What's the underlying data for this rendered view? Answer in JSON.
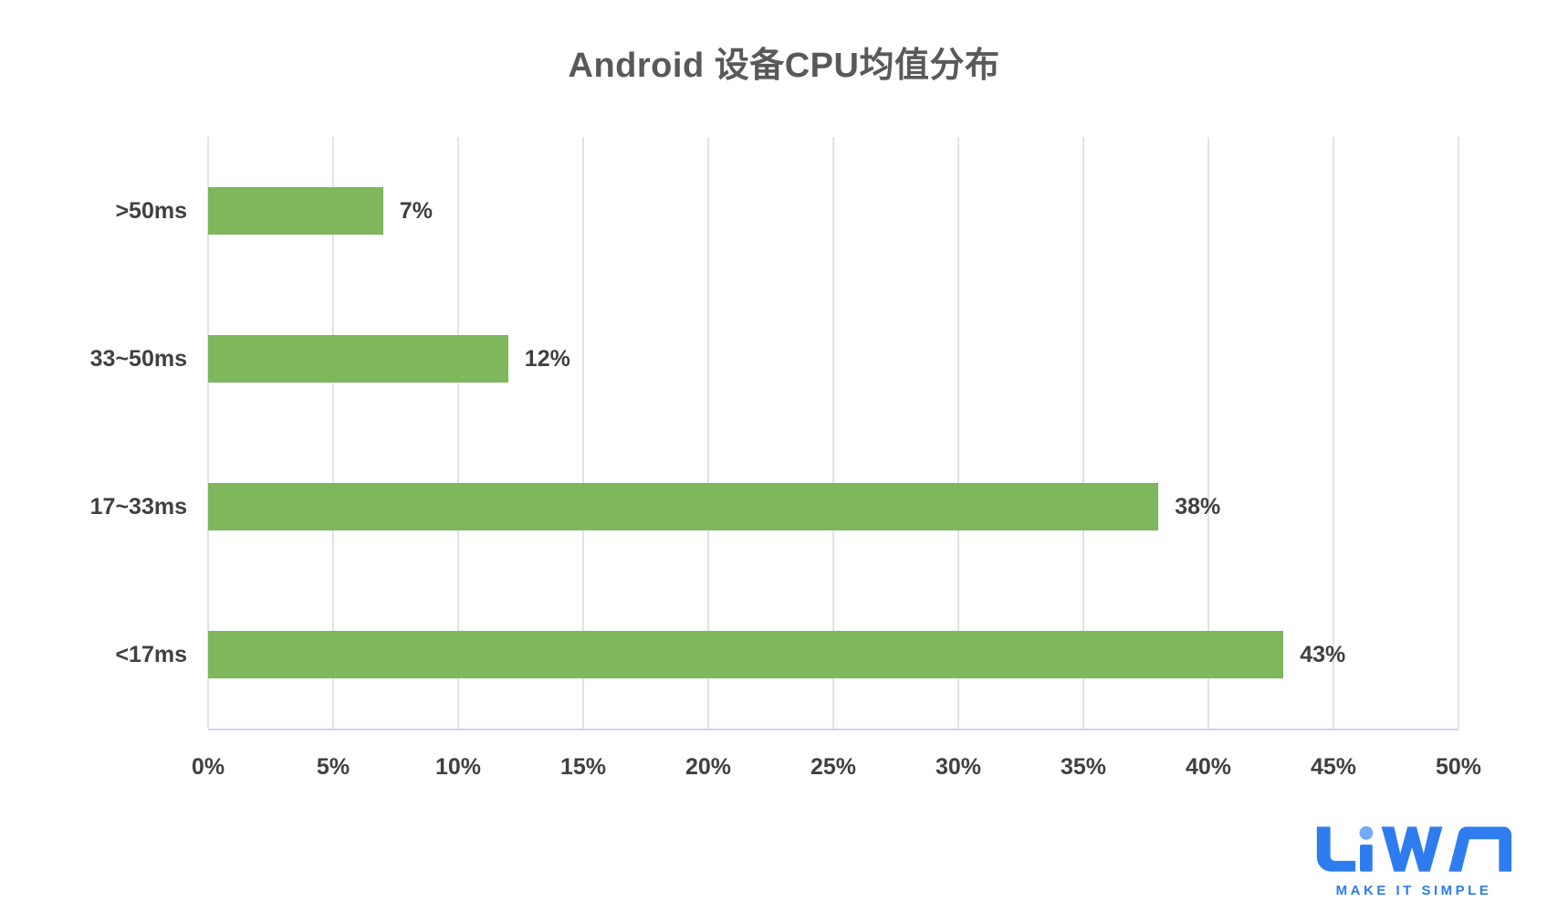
{
  "title": "Android 设备CPU均值分布",
  "colors": {
    "bar": "#7fb75c",
    "title_text": "#595959",
    "label_text": "#404040",
    "gridline": "#e3e3e3",
    "axis_line": "#ccd5e8",
    "logo_blue": "#2e7cf0",
    "logo_light_blue": "#74aaf6"
  },
  "chart_data": {
    "type": "bar",
    "orientation": "horizontal",
    "title": "Android 设备CPU均值分布",
    "categories": [
      ">50ms",
      "33~50ms",
      "17~33ms",
      "<17ms"
    ],
    "values": [
      7,
      12,
      38,
      43
    ],
    "value_labels": [
      "7%",
      "12%",
      "38%",
      "43%"
    ],
    "xlabel": "",
    "ylabel": "",
    "xlim": [
      0,
      50
    ],
    "x_ticks": [
      "0%",
      "5%",
      "10%",
      "15%",
      "20%",
      "25%",
      "30%",
      "35%",
      "40%",
      "45%",
      "50%"
    ],
    "grid": true,
    "legend": false
  },
  "logo": {
    "name": "LiWA",
    "tagline": "MAKE IT SIMPLE"
  }
}
